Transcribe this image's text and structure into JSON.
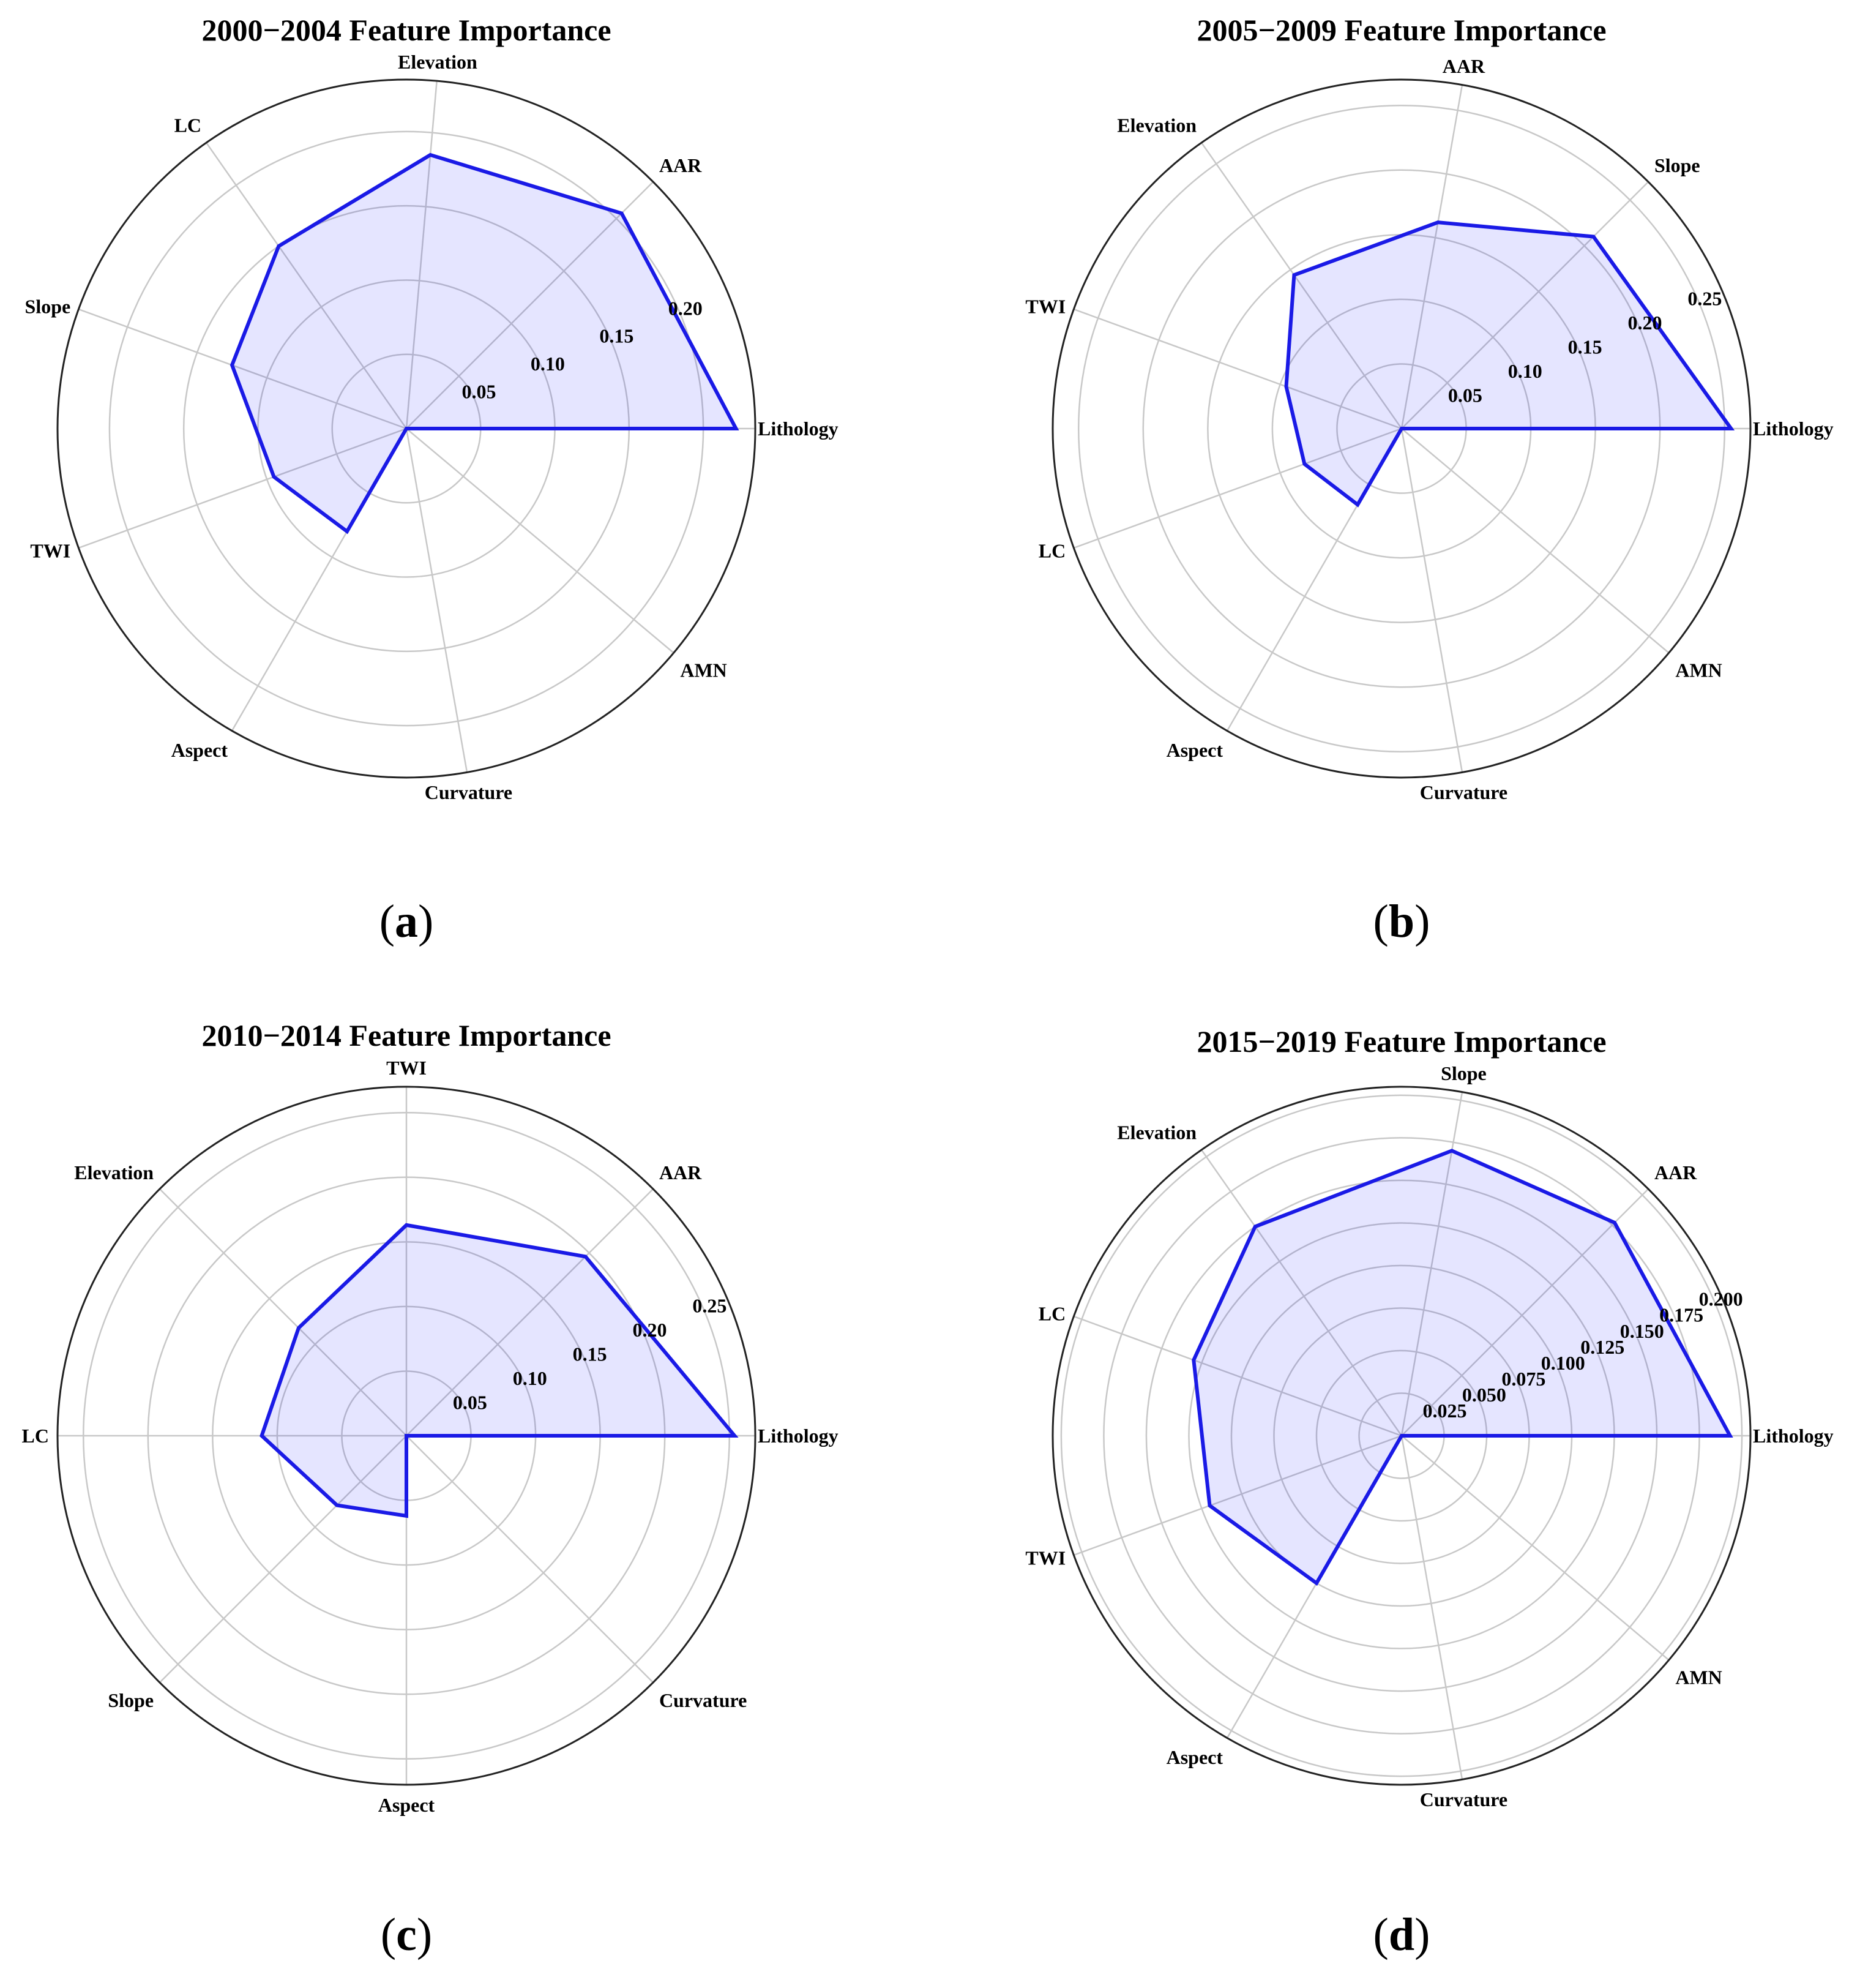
{
  "chart_data": [
    {
      "type": "radar",
      "panel": "a",
      "title": "2000−2004 Feature Importance",
      "series_name": "Feature Importance",
      "axes": [
        "Lithology",
        "AAR",
        "Elevation",
        "LC",
        "Slope",
        "TWI",
        "Aspect",
        "Curvature",
        "AMN"
      ],
      "values": [
        0.222,
        0.205,
        0.185,
        0.15,
        0.125,
        0.095,
        0.08,
        0.0,
        0.0
      ],
      "ticks": [
        "0.05",
        "0.10",
        "0.15",
        "0.20"
      ],
      "tick_values": [
        0.05,
        0.1,
        0.15,
        0.2
      ],
      "rlim": [
        0,
        0.235
      ],
      "grid": true
    },
    {
      "type": "radar",
      "panel": "b",
      "title": "2005−2009 Feature Importance",
      "series_name": "Feature Importance",
      "axes": [
        "Lithology",
        "Slope",
        "AAR",
        "Elevation",
        "TWI",
        "LC",
        "Aspect",
        "Curvature",
        "AMN"
      ],
      "values": [
        0.255,
        0.21,
        0.162,
        0.145,
        0.095,
        0.08,
        0.068,
        0.0,
        0.0
      ],
      "ticks": [
        "0.05",
        "0.10",
        "0.15",
        "0.20",
        "0.25"
      ],
      "tick_values": [
        0.05,
        0.1,
        0.15,
        0.2,
        0.25
      ],
      "rlim": [
        0,
        0.27
      ],
      "grid": true
    },
    {
      "type": "radar",
      "panel": "c",
      "title": "2010−2014 Feature Importance",
      "series_name": "Feature Importance",
      "axes": [
        "Lithology",
        "AAR",
        "TWI",
        "Elevation",
        "LC",
        "Slope",
        "Aspect",
        "Curvature"
      ],
      "values": [
        0.254,
        0.196,
        0.163,
        0.118,
        0.112,
        0.076,
        0.062,
        0.0
      ],
      "ticks": [
        "0.05",
        "0.10",
        "0.15",
        "0.20",
        "0.25"
      ],
      "tick_values": [
        0.05,
        0.1,
        0.15,
        0.2,
        0.25
      ],
      "rlim": [
        0,
        0.27
      ],
      "grid": true
    },
    {
      "type": "radar",
      "panel": "d",
      "title": "2015−2019 Feature Importance",
      "series_name": "Feature Importance",
      "axes": [
        "Lithology",
        "AAR",
        "Slope",
        "Elevation",
        "LC",
        "TWI",
        "Aspect",
        "Curvature",
        "AMN"
      ],
      "values": [
        0.193,
        0.177,
        0.17,
        0.15,
        0.13,
        0.12,
        0.1,
        0.0,
        0.0
      ],
      "ticks": [
        "0.025",
        "0.050",
        "0.075",
        "0.100",
        "0.125",
        "0.150",
        "0.175",
        "0.200"
      ],
      "tick_values": [
        0.025,
        0.05,
        0.075,
        0.1,
        0.125,
        0.15,
        0.175,
        0.2
      ],
      "rlim": [
        0,
        0.205
      ],
      "grid": true
    }
  ],
  "panel_labels": [
    "(a)",
    "(b)",
    "(c)",
    "(d)"
  ]
}
